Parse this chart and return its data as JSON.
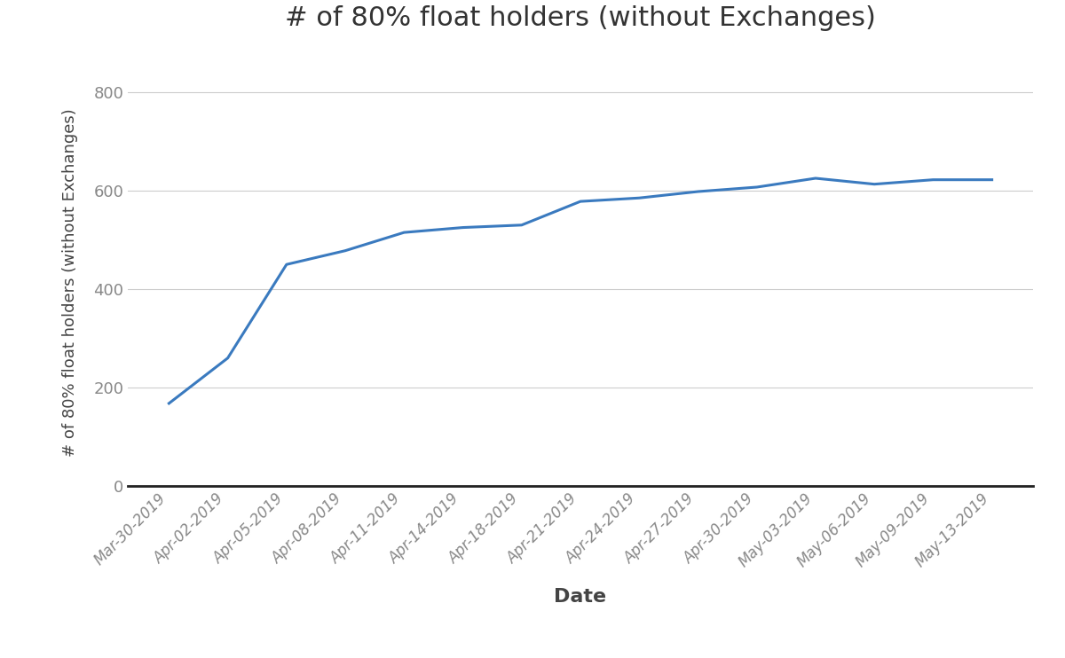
{
  "title": "# of 80% float holders (without Exchanges)",
  "xlabel": "Date",
  "ylabel": "# of 80% float holders (without Exchanges)",
  "x_labels": [
    "Mar-30-2019",
    "Apr-02-2019",
    "Apr-05-2019",
    "Apr-08-2019",
    "Apr-11-2019",
    "Apr-14-2019",
    "Apr-18-2019",
    "Apr-21-2019",
    "Apr-24-2019",
    "Apr-27-2019",
    "Apr-30-2019",
    "May-03-2019",
    "May-06-2019",
    "May-09-2019",
    "May-13-2019"
  ],
  "y_values": [
    168,
    260,
    450,
    478,
    515,
    525,
    530,
    578,
    585,
    598,
    607,
    625,
    613,
    622,
    622
  ],
  "line_color": "#3a7abf",
  "line_width": 2.2,
  "ylim": [
    -55,
    880
  ],
  "yticks": [
    0,
    200,
    400,
    600,
    800
  ],
  "background_color": "#ffffff",
  "grid_color": "#cccccc",
  "title_fontsize": 22,
  "axis_label_fontsize": 14,
  "tick_fontsize": 12,
  "tick_color": "#888888",
  "label_color": "#444444",
  "title_color": "#333333"
}
